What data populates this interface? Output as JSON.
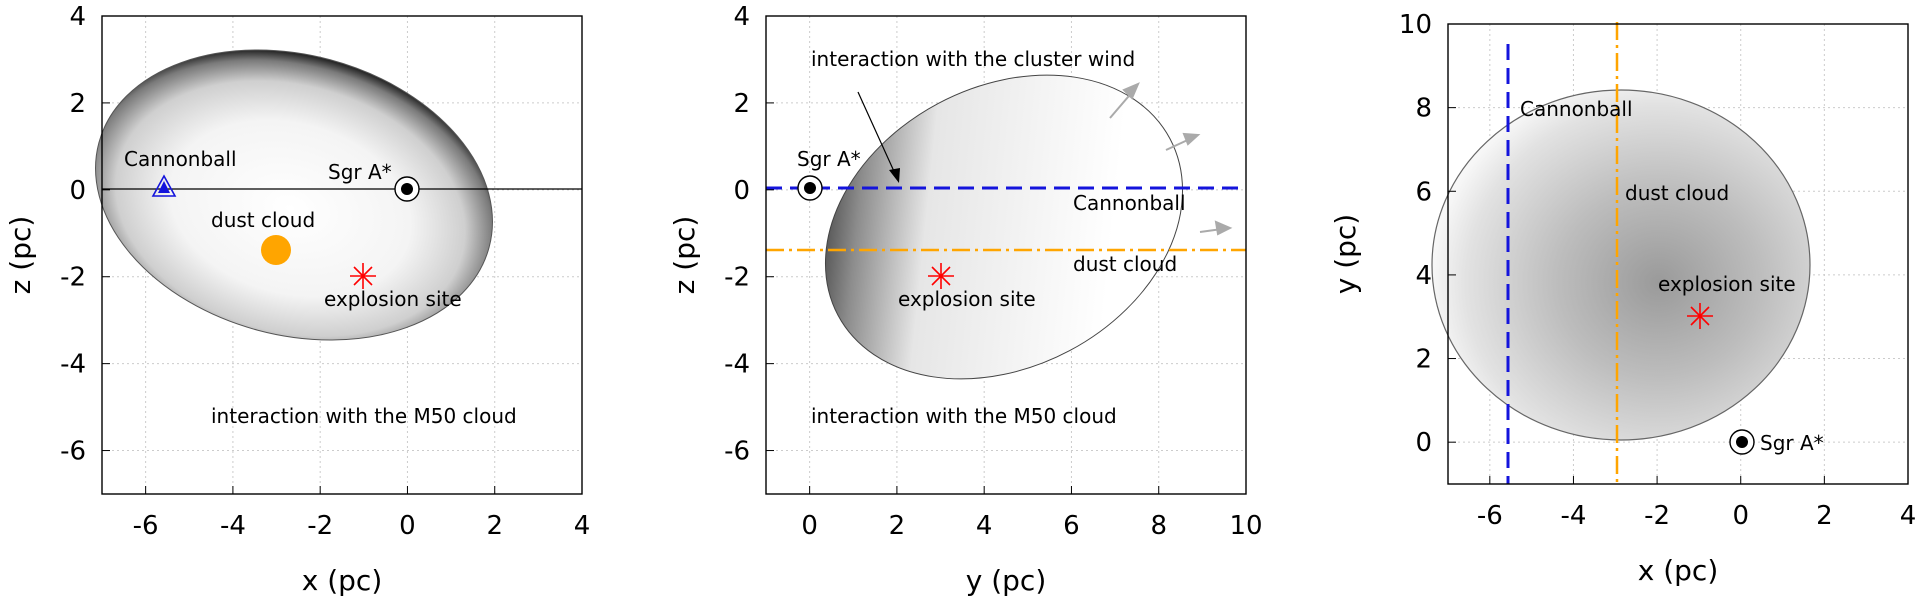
{
  "colors": {
    "cannonball": "#1414dc",
    "dust": "#ffa500",
    "explosion": "#ff0000",
    "grid": "#cccccc"
  },
  "chart_data": [
    {
      "type": "scatter",
      "title": "",
      "xlabel": "x (pc)",
      "ylabel": "z (pc)",
      "xlim": [
        -7,
        4
      ],
      "ylim": [
        -7,
        4
      ],
      "xticks": [
        "-6",
        "-4",
        "-2",
        "0",
        "2",
        "4"
      ],
      "yticks": [
        "-6",
        "-4",
        "-2",
        "0",
        "2",
        "4"
      ],
      "grid": true,
      "shell": "grayscale ellipsoidal remnant, x -5.8 to 3.0, z -4.8 to 2.0",
      "points": [
        {
          "name": "Cannonball",
          "x": -5.6,
          "y": 0.0,
          "marker": "triangle",
          "color": "#1414dc"
        },
        {
          "name": "Sgr A*",
          "x": 0.0,
          "y": 0.0,
          "marker": "circled-dot",
          "color": "#000000"
        },
        {
          "name": "dust cloud",
          "x": -3.1,
          "y": -1.4,
          "marker": "filled-circle",
          "color": "#ffa500"
        },
        {
          "name": "explosion site",
          "x": -1.1,
          "y": -2.0,
          "marker": "asterisk",
          "color": "#ff0000"
        }
      ],
      "annotations": {
        "cannonball": "Cannonball",
        "sgr": "Sgr A*",
        "dust": "dust cloud",
        "explosion": "explosion site",
        "m50": "interaction with the M50 cloud"
      }
    },
    {
      "type": "scatter",
      "title": "",
      "xlabel": "y (pc)",
      "ylabel": "z (pc)",
      "xlim": [
        -1,
        10
      ],
      "ylim": [
        -7,
        4
      ],
      "xticks": [
        "0",
        "2",
        "4",
        "6",
        "8",
        "10"
      ],
      "yticks": [
        "-6",
        "-4",
        "-2",
        "0",
        "2",
        "4"
      ],
      "grid": true,
      "shell": "grayscale tilted remnant, y 0.5 to 8.6, z -4.8 to 2.0",
      "lines": [
        {
          "name": "Cannonball",
          "orientation": "horizontal",
          "value": 0.0,
          "style": "dashed",
          "color": "#1414dc"
        },
        {
          "name": "dust cloud",
          "orientation": "horizontal",
          "value": -1.4,
          "style": "dash-dot",
          "color": "#ffa500"
        }
      ],
      "points": [
        {
          "name": "Sgr A*",
          "x": 0.0,
          "y": 0.0,
          "marker": "circled-dot",
          "color": "#000000"
        },
        {
          "name": "explosion site",
          "x": 3.0,
          "y": -2.0,
          "marker": "asterisk",
          "color": "#ff0000"
        }
      ],
      "annotations": {
        "wind": "interaction with the cluster wind",
        "sgr": "Sgr A*",
        "cannonball": "Cannonball",
        "dust": "dust cloud",
        "explosion": "explosion site",
        "m50": "interaction with the M50 cloud"
      }
    },
    {
      "type": "scatter",
      "title": "",
      "xlabel": "x (pc)",
      "ylabel": "y (pc)",
      "xlim": [
        -7,
        4
      ],
      "ylim": [
        -1,
        10
      ],
      "xticks": [
        "-6",
        "-4",
        "-2",
        "0",
        "2",
        "4"
      ],
      "yticks": [
        "0",
        "2",
        "4",
        "6",
        "8",
        "10"
      ],
      "grid": true,
      "shell": "grayscale round remnant, x -5.8 to 3.0, y 0.5 to 8.6",
      "lines": [
        {
          "name": "Cannonball",
          "orientation": "vertical",
          "value": -5.6,
          "style": "dashed",
          "color": "#1414dc"
        },
        {
          "name": "dust cloud",
          "orientation": "vertical",
          "value": -3.0,
          "style": "dash-dot",
          "color": "#ffa500"
        }
      ],
      "points": [
        {
          "name": "explosion site",
          "x": -1.0,
          "y": 3.0,
          "marker": "asterisk",
          "color": "#ff0000"
        },
        {
          "name": "Sgr A*",
          "x": 0.0,
          "y": 0.0,
          "marker": "circled-dot",
          "color": "#000000"
        }
      ],
      "annotations": {
        "cannonball": "Cannonball",
        "dust": "dust cloud",
        "explosion": "explosion site",
        "sgr": "Sgr A*"
      }
    }
  ]
}
